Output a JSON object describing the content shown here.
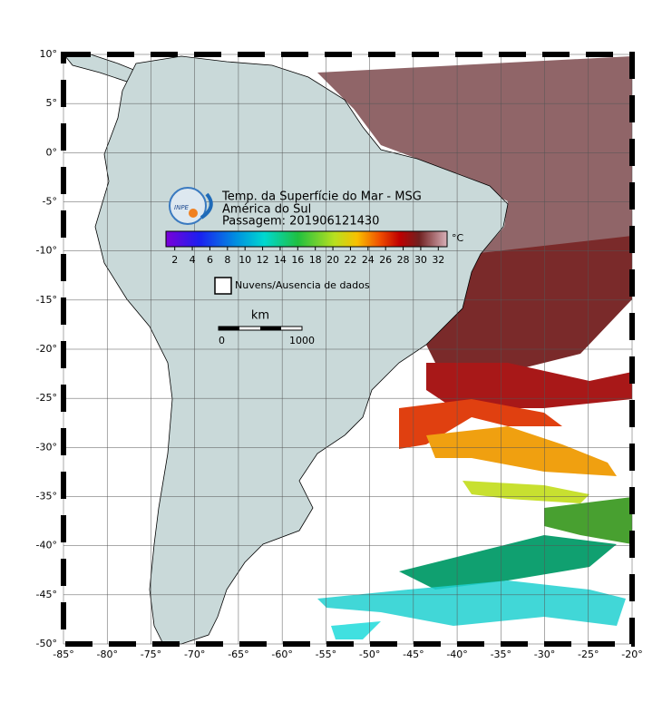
{
  "map": {
    "title": "Temp. da Superfície do Mar - MSG",
    "region": "América do Sul",
    "pass": "Passagem: 201906121430",
    "logo": "INPE",
    "xlim": [
      -85,
      -20
    ],
    "ylim": [
      -50,
      10
    ],
    "xticks": [
      {
        "value": -85,
        "label": "-85°"
      },
      {
        "value": -80,
        "label": "-80°"
      },
      {
        "value": -75,
        "label": "-75°"
      },
      {
        "value": -70,
        "label": "-70°"
      },
      {
        "value": -65,
        "label": "-65°"
      },
      {
        "value": -60,
        "label": "-60°"
      },
      {
        "value": -55,
        "label": "-55°"
      },
      {
        "value": -50,
        "label": "-50°"
      },
      {
        "value": -45,
        "label": "-45°"
      },
      {
        "value": -40,
        "label": "-40°"
      },
      {
        "value": -35,
        "label": "-35°"
      },
      {
        "value": -30,
        "label": "-30°"
      },
      {
        "value": -25,
        "label": "-25°"
      },
      {
        "value": -20,
        "label": "-20°"
      }
    ],
    "yticks": [
      {
        "value": 10,
        "label": "10°"
      },
      {
        "value": 5,
        "label": "5°"
      },
      {
        "value": 0,
        "label": "0°"
      },
      {
        "value": -5,
        "label": "-5°"
      },
      {
        "value": -10,
        "label": "-10°"
      },
      {
        "value": -15,
        "label": "-15°"
      },
      {
        "value": -20,
        "label": "-20°"
      },
      {
        "value": -25,
        "label": "-25°"
      },
      {
        "value": -30,
        "label": "-30°"
      },
      {
        "value": -35,
        "label": "-35°"
      },
      {
        "value": -40,
        "label": "-40°"
      },
      {
        "value": -45,
        "label": "-45°"
      },
      {
        "value": -50,
        "label": "-50°"
      }
    ],
    "colorbar": {
      "unit": "°C",
      "range": [
        1,
        33
      ],
      "ticks": [
        2,
        4,
        6,
        8,
        10,
        12,
        14,
        16,
        18,
        20,
        22,
        24,
        26,
        28,
        30,
        32
      ]
    },
    "legend": "Nuvens/Ausencia de dados",
    "scale": {
      "unit": "km",
      "ticks": [
        0,
        1000
      ]
    }
  }
}
